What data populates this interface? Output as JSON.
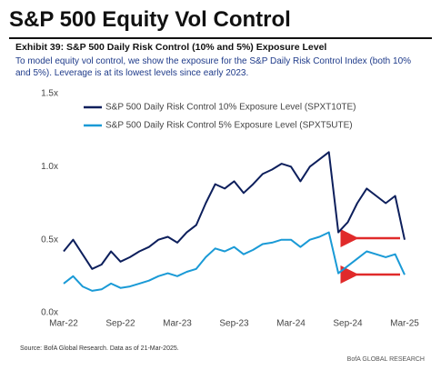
{
  "chart_data": {
    "type": "line",
    "title": "S&P 500 Equity Vol Control",
    "subtitle": "Exhibit 39: S&P 500 Daily Risk Control (10% and 5%) Exposure Level",
    "description": "To model equity vol control, we show the exposure for the S&P Daily Risk Control Index (both 10% and 5%).  Leverage is at its lowest levels since early 2023.",
    "source": "Source: BofA Global Research. Data as of 21-Mar-2025.",
    "brand": "BofA GLOBAL RESEARCH",
    "categories": [
      "Mar-22",
      null,
      null,
      null,
      null,
      null,
      "Sep-22",
      null,
      null,
      null,
      null,
      null,
      "Mar-23",
      null,
      null,
      null,
      null,
      null,
      "Sep-23",
      null,
      null,
      null,
      null,
      null,
      "Mar-24",
      null,
      null,
      null,
      null,
      null,
      "Sep-24",
      null,
      null,
      null,
      null,
      null,
      "Mar-25"
    ],
    "series": [
      {
        "name": "S&P 500 Daily Risk Control 10% Exposure Level (SPXT10TE)",
        "color": "#0d1f5c",
        "values": [
          0.42,
          0.5,
          0.4,
          0.3,
          0.33,
          0.42,
          0.35,
          0.38,
          0.42,
          0.45,
          0.5,
          0.52,
          0.48,
          0.55,
          0.6,
          0.75,
          0.88,
          0.85,
          0.9,
          0.82,
          0.88,
          0.95,
          0.98,
          1.02,
          1.0,
          0.9,
          1.0,
          1.05,
          1.1,
          0.55,
          0.62,
          0.75,
          0.85,
          0.8,
          0.75,
          0.8,
          0.5
        ]
      },
      {
        "name": "S&P 500 Daily Risk Control 5% Exposure Level (SPXT5UTE)",
        "color": "#1a9ad6",
        "values": [
          0.2,
          0.25,
          0.18,
          0.15,
          0.16,
          0.2,
          0.17,
          0.18,
          0.2,
          0.22,
          0.25,
          0.27,
          0.25,
          0.28,
          0.3,
          0.38,
          0.44,
          0.42,
          0.45,
          0.4,
          0.43,
          0.47,
          0.48,
          0.5,
          0.5,
          0.45,
          0.5,
          0.52,
          0.55,
          0.27,
          0.32,
          0.37,
          0.42,
          0.4,
          0.38,
          0.4,
          0.26
        ]
      }
    ],
    "ylim": [
      0,
      1.5
    ],
    "yticks": [
      {
        "value": 0,
        "label": "0.0x"
      },
      {
        "value": 0.5,
        "label": "0.5x"
      },
      {
        "value": 1,
        "label": "1.0x"
      },
      {
        "value": 1.5,
        "label": "1.5x"
      }
    ],
    "grid": false,
    "legend": "upper left"
  }
}
